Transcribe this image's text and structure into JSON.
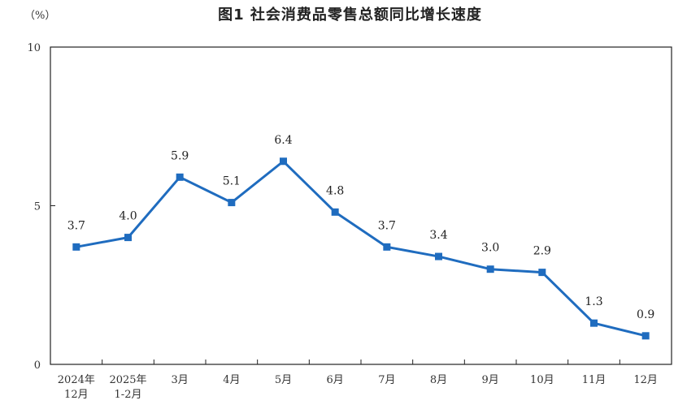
{
  "title": "图1  社会消费品零售总额同比增长速度",
  "unit_label": "（%）",
  "chart_data": {
    "type": "line",
    "title": "图1  社会消费品零售总额同比增长速度",
    "ylabel": "（%）",
    "ylim": [
      0,
      10
    ],
    "yticks": [
      "0",
      "5",
      "10"
    ],
    "grid": false,
    "categories": [
      [
        "2024年",
        "12月"
      ],
      [
        "2025年",
        "1-2月"
      ],
      [
        "3月"
      ],
      [
        "4月"
      ],
      [
        "5月"
      ],
      [
        "6月"
      ],
      [
        "7月"
      ],
      [
        "8月"
      ],
      [
        "9月"
      ],
      [
        "10月"
      ],
      [
        "11月"
      ],
      [
        "12月"
      ]
    ],
    "values": [
      3.7,
      4.0,
      5.9,
      5.1,
      6.4,
      4.8,
      3.7,
      3.4,
      3.0,
      2.9,
      1.3,
      0.9
    ],
    "data_labels": [
      "3.7",
      "4.0",
      "5.9",
      "5.1",
      "6.4",
      "4.8",
      "3.7",
      "3.4",
      "3.0",
      "2.9",
      "1.3",
      "0.9"
    ],
    "line_color": "#1f6cbf"
  }
}
